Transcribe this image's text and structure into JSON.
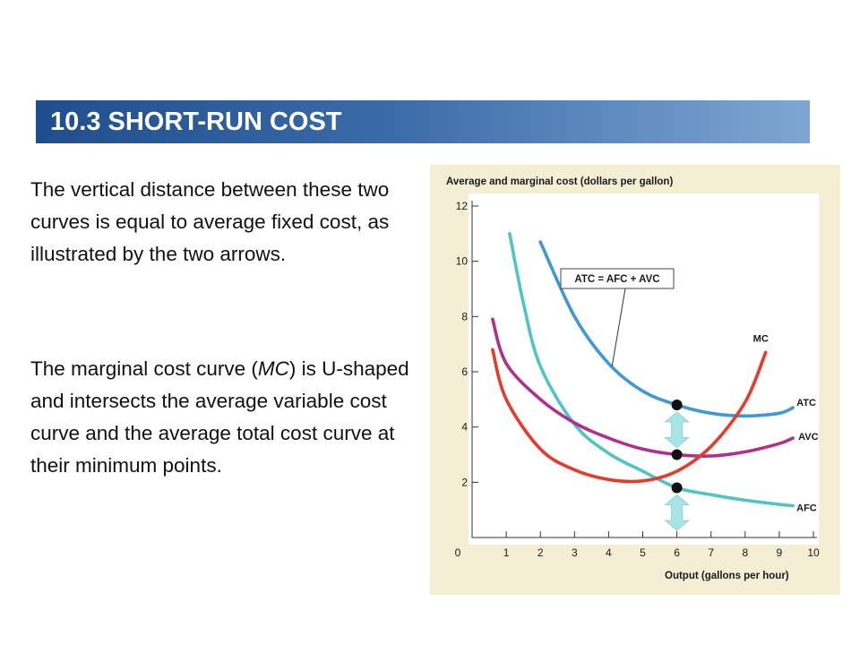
{
  "slide": {
    "title": "10.3 SHORT-RUN COST",
    "paragraph_1": "The vertical distance between these two curves is equal to average fixed cost, as illustrated by the two arrows.",
    "paragraph_2_before": "The marginal cost curve (",
    "paragraph_2_italic": "MC",
    "paragraph_2_after": ") is U-shaped and intersects the average variable cost curve and the average total cost curve at their minimum points."
  },
  "chart_data": {
    "type": "line",
    "ylabel": "Average and marginal cost (dollars per gallon)",
    "xlabel": "Output (gallons per hour)",
    "xlim": [
      0,
      10
    ],
    "ylim": [
      0,
      12
    ],
    "x_ticks": [
      0,
      1,
      2,
      3,
      4,
      5,
      6,
      7,
      8,
      9,
      10
    ],
    "y_ticks": [
      0,
      2,
      4,
      6,
      8,
      10,
      12
    ],
    "grid": false,
    "series": [
      {
        "name": "MC",
        "color": "#e8392a",
        "points": [
          [
            0.6,
            6.8
          ],
          [
            1,
            5.0
          ],
          [
            2,
            3.2
          ],
          [
            3,
            2.45
          ],
          [
            4,
            2.1
          ],
          [
            5,
            2.05
          ],
          [
            6,
            2.4
          ],
          [
            7,
            3.3
          ],
          [
            8,
            4.9
          ],
          [
            8.6,
            6.7
          ]
        ]
      },
      {
        "name": "ATC",
        "color": "#3c98d8",
        "points": [
          [
            2,
            10.7
          ],
          [
            3,
            8.0
          ],
          [
            4,
            6.3
          ],
          [
            5,
            5.3
          ],
          [
            6,
            4.8
          ],
          [
            7,
            4.5
          ],
          [
            8,
            4.4
          ],
          [
            9,
            4.5
          ],
          [
            9.4,
            4.7
          ]
        ]
      },
      {
        "name": "AVC",
        "color": "#b02f8c",
        "points": [
          [
            0.6,
            7.9
          ],
          [
            1,
            6.3
          ],
          [
            2,
            5.0
          ],
          [
            3,
            4.15
          ],
          [
            4,
            3.6
          ],
          [
            5,
            3.2
          ],
          [
            6,
            3.0
          ],
          [
            7,
            2.95
          ],
          [
            8,
            3.1
          ],
          [
            9,
            3.4
          ],
          [
            9.4,
            3.6
          ]
        ]
      },
      {
        "name": "AFC",
        "color": "#4fc3c8",
        "points": [
          [
            1.1,
            11.0
          ],
          [
            1.5,
            8.5
          ],
          [
            2,
            6.2
          ],
          [
            3,
            4.1
          ],
          [
            4,
            3.05
          ],
          [
            5,
            2.4
          ],
          [
            6,
            1.8
          ],
          [
            7,
            1.55
          ],
          [
            8,
            1.35
          ],
          [
            9,
            1.2
          ],
          [
            9.4,
            1.15
          ]
        ]
      }
    ],
    "annotations": {
      "formula": "ATC = AFC + AVC",
      "formula_target_x": 4.1,
      "points": [
        {
          "series": "ATC",
          "x": 6,
          "y": 4.8
        },
        {
          "series": "AVC",
          "x": 6,
          "y": 3.0
        },
        {
          "series": "AFC",
          "x": 6,
          "y": 1.8
        }
      ],
      "afc_arrows": [
        {
          "x": 6,
          "from": 3.0,
          "to": 4.8
        },
        {
          "x": 6,
          "from": 0.0,
          "to": 1.8
        }
      ]
    }
  }
}
